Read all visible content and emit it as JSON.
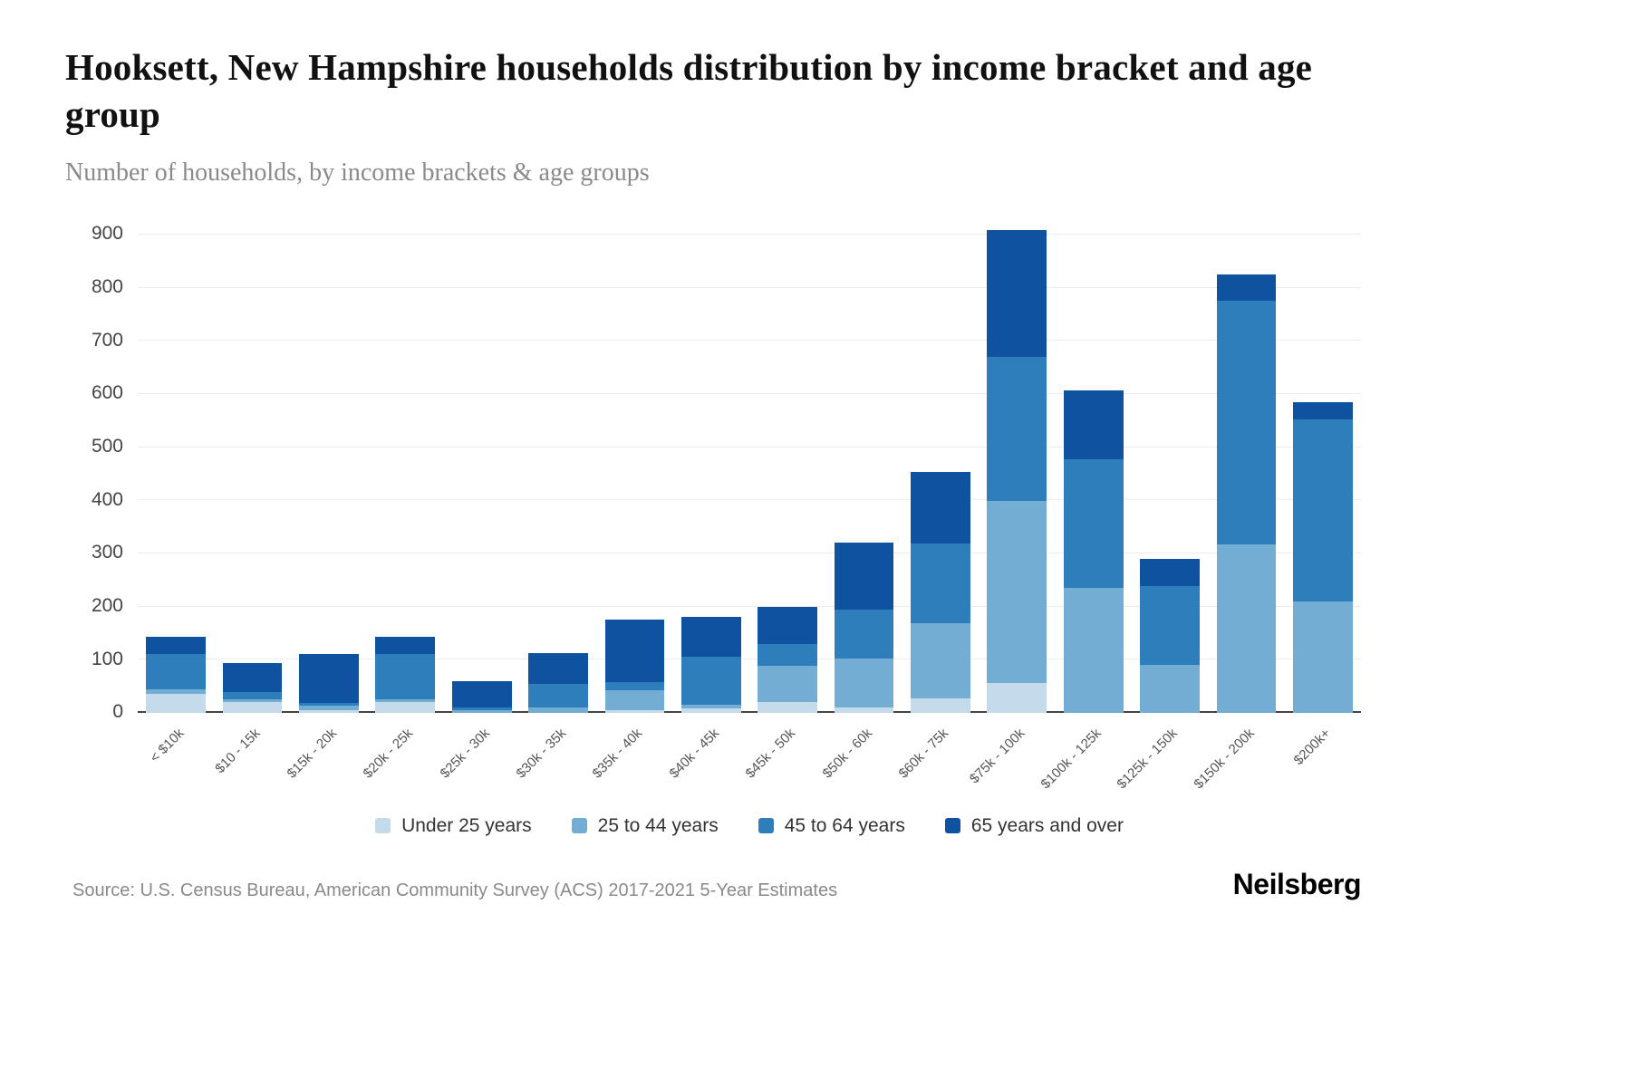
{
  "header": {
    "title": "Hooksett, New Hampshire households distribution by income bracket and age group",
    "subtitle": "Number of households, by income brackets & age groups"
  },
  "chart_data": {
    "type": "bar",
    "stacked": true,
    "categories": [
      "< $10k",
      "$10 - 15k",
      "$15k - 20k",
      "$20k - 25k",
      "$25k - 30k",
      "$30k - 35k",
      "$35k - 40k",
      "$40k - 45k",
      "$45k - 50k",
      "$50k - 60k",
      "$60k - 75k",
      "$75k - 100k",
      "$100k - 125k",
      "$125k - 150k",
      "$150k - 200k",
      "$200k+"
    ],
    "series": [
      {
        "name": "Under 25 years",
        "color": "#c5dbeb",
        "values": [
          35,
          20,
          5,
          20,
          0,
          0,
          5,
          8,
          20,
          10,
          27,
          57,
          0,
          0,
          0,
          0
        ]
      },
      {
        "name": "25 to 44 years",
        "color": "#74add3",
        "values": [
          10,
          5,
          8,
          5,
          5,
          10,
          38,
          8,
          68,
          93,
          141,
          341,
          235,
          90,
          317,
          210
        ]
      },
      {
        "name": "45 to 64 years",
        "color": "#2e7ebc",
        "values": [
          65,
          15,
          5,
          85,
          5,
          45,
          15,
          90,
          42,
          92,
          150,
          272,
          243,
          148,
          458,
          343
        ]
      },
      {
        "name": "65 years and over",
        "color": "#0f52a0",
        "values": [
          33,
          53,
          92,
          33,
          50,
          58,
          117,
          74,
          70,
          125,
          135,
          238,
          129,
          52,
          50,
          32
        ]
      }
    ],
    "title": "Hooksett, New Hampshire households distribution by income bracket and age group",
    "xlabel": "",
    "ylabel": "Number of households",
    "ylim": [
      0,
      900
    ],
    "yticks": [
      0,
      100,
      200,
      300,
      400,
      500,
      600,
      700,
      800,
      900
    ],
    "grid": true,
    "legend_position": "bottom"
  },
  "footer": {
    "source": "Source: U.S. Census Bureau, American Community Survey (ACS) 2017-2021 5-Year Estimates",
    "brand": "Neilsberg"
  }
}
